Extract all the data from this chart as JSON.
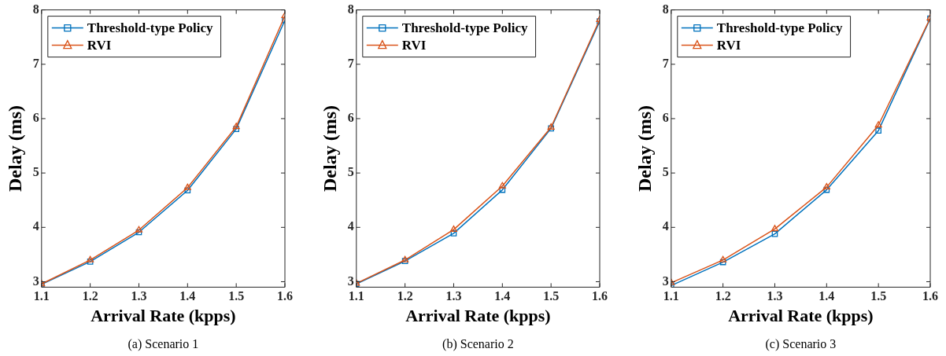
{
  "chart_data": [
    {
      "type": "line",
      "xlabel": "Arrival Rate (kpps)",
      "ylabel": "Delay (ms)",
      "x": [
        1.1,
        1.2,
        1.3,
        1.4,
        1.5,
        1.6
      ],
      "xlim": [
        1.1,
        1.6
      ],
      "xticks": [
        1.1,
        1.2,
        1.3,
        1.4,
        1.5,
        1.6
      ],
      "ylim": [
        2.9,
        8
      ],
      "yticks": [
        3,
        4,
        5,
        6,
        7,
        8
      ],
      "grid": false,
      "legend": "top left",
      "line_style": "solid",
      "annotations": [
        "(a) Scenario 1"
      ],
      "series": [
        {
          "name": "Threshold-type Policy",
          "color": "#0072bd",
          "marker": "square",
          "values": [
            2.95,
            3.37,
            3.91,
            4.68,
            5.81,
            7.81
          ]
        },
        {
          "name": "RVI",
          "color": "#d95319",
          "marker": "triangle",
          "values": [
            2.96,
            3.4,
            3.95,
            4.73,
            5.85,
            7.89
          ]
        }
      ]
    },
    {
      "type": "line",
      "xlabel": "Arrival Rate (kpps)",
      "ylabel": "Delay (ms)",
      "x": [
        1.1,
        1.2,
        1.3,
        1.4,
        1.5,
        1.6
      ],
      "xlim": [
        1.1,
        1.6
      ],
      "xticks": [
        1.1,
        1.2,
        1.3,
        1.4,
        1.5,
        1.6
      ],
      "ylim": [
        2.9,
        8
      ],
      "yticks": [
        3,
        4,
        5,
        6,
        7,
        8
      ],
      "grid": false,
      "legend": "top left",
      "line_style": "solid",
      "annotations": [
        "(b) Scenario 2"
      ],
      "series": [
        {
          "name": "Threshold-type Policy",
          "color": "#0072bd",
          "marker": "square",
          "values": [
            2.96,
            3.38,
            3.89,
            4.69,
            5.82,
            7.79
          ]
        },
        {
          "name": "RVI",
          "color": "#d95319",
          "marker": "triangle",
          "values": [
            2.97,
            3.4,
            3.96,
            4.76,
            5.84,
            7.82
          ]
        }
      ]
    },
    {
      "type": "line",
      "xlabel": "Arrival Rate (kpps)",
      "ylabel": "Delay (ms)",
      "x": [
        1.1,
        1.2,
        1.3,
        1.4,
        1.5,
        1.6
      ],
      "xlim": [
        1.1,
        1.6
      ],
      "xticks": [
        1.1,
        1.2,
        1.3,
        1.4,
        1.5,
        1.6
      ],
      "ylim": [
        2.9,
        8
      ],
      "yticks": [
        3,
        4,
        5,
        6,
        7,
        8
      ],
      "grid": false,
      "legend": "top left",
      "line_style": "solid",
      "annotations": [
        "(c) Scenario 3"
      ],
      "series": [
        {
          "name": "Threshold-type Policy",
          "color": "#0072bd",
          "marker": "square",
          "values": [
            2.93,
            3.36,
            3.88,
            4.69,
            5.78,
            7.84
          ]
        },
        {
          "name": "RVI",
          "color": "#d95319",
          "marker": "triangle",
          "values": [
            2.98,
            3.4,
            3.97,
            4.74,
            5.88,
            7.85
          ]
        }
      ]
    }
  ]
}
